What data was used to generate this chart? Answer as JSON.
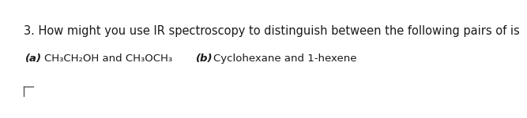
{
  "background_color": "#ffffff",
  "line1": "3. How might you use IR spectroscopy to distinguish between the following pairs of is",
  "line1_fontsize": 10.5,
  "line2_label_a": "(a)",
  "line2_chem_a": "CH₃CH₂OH and CH₃OCH₃",
  "line2_label_b": "(b)",
  "line2_chem_b": "Cyclohexane and 1-hexene",
  "fontsize_sub": 9.5,
  "text_color": "#1a1a1a",
  "corner_color": "#555555"
}
